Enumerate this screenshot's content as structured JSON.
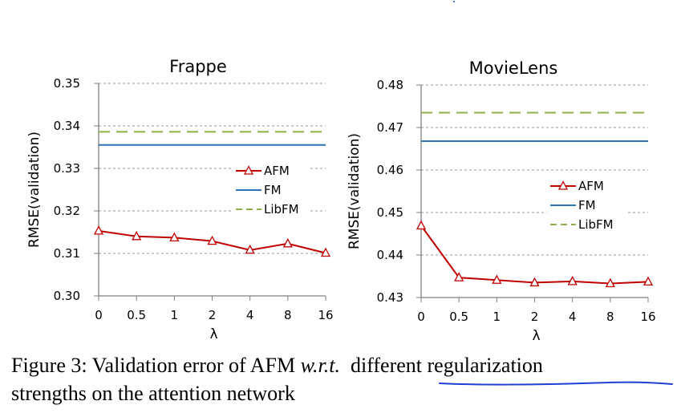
{
  "chart_data": [
    {
      "type": "line",
      "title": "Frappe",
      "xlabel": "λ",
      "ylabel": "RMSE(validation)",
      "categories": [
        "0",
        "0.5",
        "1",
        "2",
        "4",
        "8",
        "16"
      ],
      "ylim": [
        0.3,
        0.35
      ],
      "yticks": [
        "0.35",
        "0.34",
        "0.33",
        "0.32",
        "0.31",
        "0.30"
      ],
      "ytick_values": [
        0.35,
        0.34,
        0.33,
        0.32,
        0.31,
        0.3
      ],
      "grid": true,
      "legend_position": "center-right",
      "series": [
        {
          "name": "AFM",
          "color": "#C00000",
          "style": "solid-triangle",
          "values": [
            0.3153,
            0.314,
            0.3137,
            0.3129,
            0.3108,
            0.3123,
            0.3101
          ]
        },
        {
          "name": "FM",
          "color": "#2E75B6",
          "style": "solid",
          "values": [
            0.3355,
            0.3355,
            0.3355,
            0.3355,
            0.3355,
            0.3355,
            0.3355
          ]
        },
        {
          "name": "LibFM",
          "color": "#8DB14A",
          "style": "dashed",
          "values": [
            0.3386,
            0.3386,
            0.3386,
            0.3386,
            0.3386,
            0.3386,
            0.3386
          ]
        }
      ]
    },
    {
      "type": "line",
      "title": "MovieLens",
      "xlabel": "λ",
      "ylabel": "RMSE(validation)",
      "categories": [
        "0",
        "0.5",
        "1",
        "2",
        "4",
        "8",
        "16"
      ],
      "ylim": [
        0.43,
        0.48
      ],
      "yticks": [
        "0.48",
        "0.47",
        "0.46",
        "0.45",
        "0.44",
        "0.43"
      ],
      "ytick_values": [
        0.48,
        0.47,
        0.46,
        0.45,
        0.44,
        0.43
      ],
      "grid": true,
      "legend_position": "center-right",
      "series": [
        {
          "name": "AFM",
          "color": "#C00000",
          "style": "solid-triangle",
          "values": [
            0.4469,
            0.4347,
            0.4341,
            0.4335,
            0.4338,
            0.4333,
            0.4337
          ]
        },
        {
          "name": "FM",
          "color": "#2E75B6",
          "style": "solid",
          "values": [
            0.4668,
            0.4668,
            0.4668,
            0.4668,
            0.4668,
            0.4668,
            0.4668
          ]
        },
        {
          "name": "LibFM",
          "color": "#8DB14A",
          "style": "dashed",
          "values": [
            0.4735,
            0.4735,
            0.4735,
            0.4735,
            0.4735,
            0.4735,
            0.4735
          ]
        }
      ]
    }
  ],
  "caption": {
    "prefix": "Figure 3:  Validation error of AFM ",
    "wrt": "w.r.t.",
    "underlined": "different regularization",
    "line2": "strengths on the attention network"
  },
  "annotation_color": "#1F3FD6"
}
